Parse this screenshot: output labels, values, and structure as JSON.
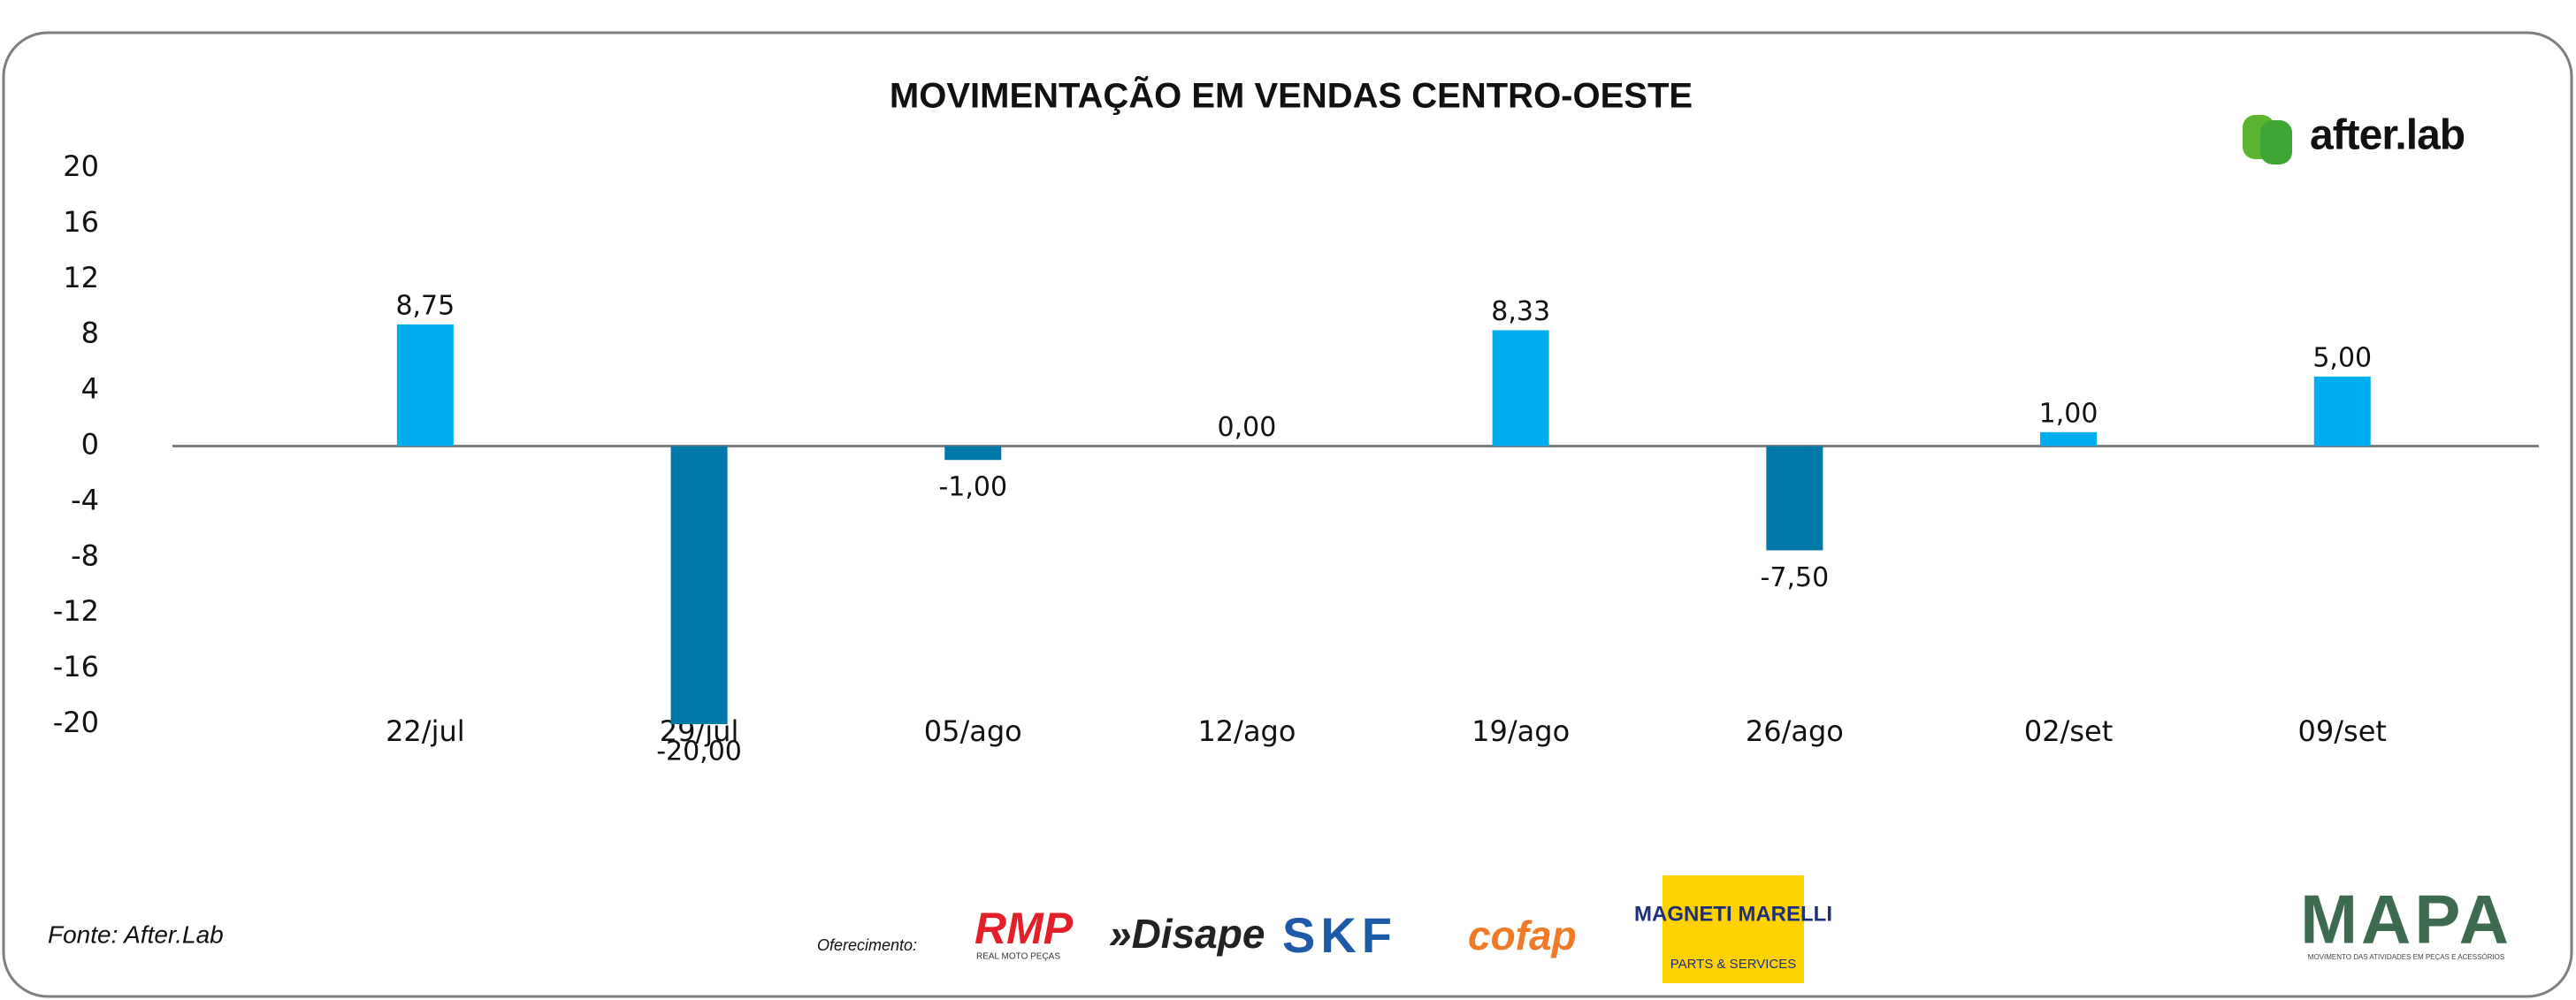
{
  "chart_data": {
    "type": "bar",
    "title": "MOVIMENTAÇÃO EM VENDAS CENTRO-OESTE",
    "categories": [
      "22/jul",
      "29/jul",
      "05/ago",
      "12/ago",
      "19/ago",
      "26/ago",
      "02/set",
      "09/set"
    ],
    "values": [
      8.75,
      -20,
      -1,
      0,
      8.33,
      -7.5,
      1,
      5
    ],
    "value_labels": [
      "8,75",
      "-20,00",
      "-1,00",
      "0,00",
      "8,33",
      "-7,50",
      "1,00",
      "5,00"
    ],
    "color": "#00aeef",
    "negative_color": "#0079a8",
    "ylim": [
      -20,
      20
    ],
    "yticks": [
      -20,
      -16,
      -12,
      -8,
      -4,
      0,
      4,
      8,
      12,
      16,
      20
    ],
    "grid": false,
    "source": "Fonte: After.Lab",
    "brand": "after.lab",
    "sponsor_intro": "Oferecimento:",
    "sponsors": [
      "RMP",
      "REAL MOTO PEÇAS",
      "»Disape",
      "SKF",
      "cofap",
      "MAGNETI MARELLI",
      "PARTS & SERVICES",
      "MAPA",
      "MOVIMENTO DAS ATIVIDADES EM PEÇAS E ACESSÓRIOS"
    ]
  }
}
